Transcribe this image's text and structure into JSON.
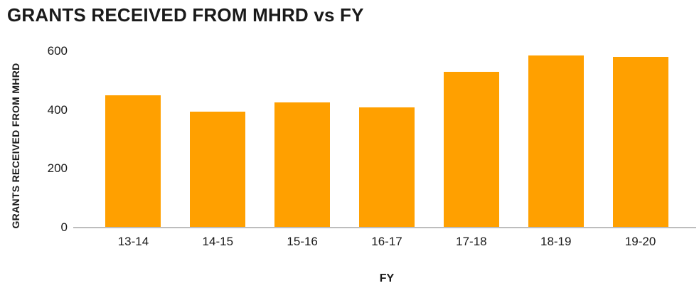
{
  "chart_data": {
    "type": "bar",
    "title": "GRANTS RECEIVED FROM MHRD vs FY",
    "xlabel": "FY",
    "ylabel": "GRANTS RECEIVED FROM MHRD",
    "categories": [
      "13-14",
      "14-15",
      "15-16",
      "16-17",
      "17-18",
      "18-19",
      "19-20"
    ],
    "values": [
      450,
      395,
      425,
      410,
      530,
      585,
      580
    ],
    "ylim": [
      0,
      600
    ],
    "yticks": [
      0,
      200,
      400,
      600
    ],
    "grid": false,
    "legend": "none",
    "bar_color": "#FFA000",
    "axis_line_color": "#BDBDBD",
    "text_color": "#1A1A1A"
  }
}
